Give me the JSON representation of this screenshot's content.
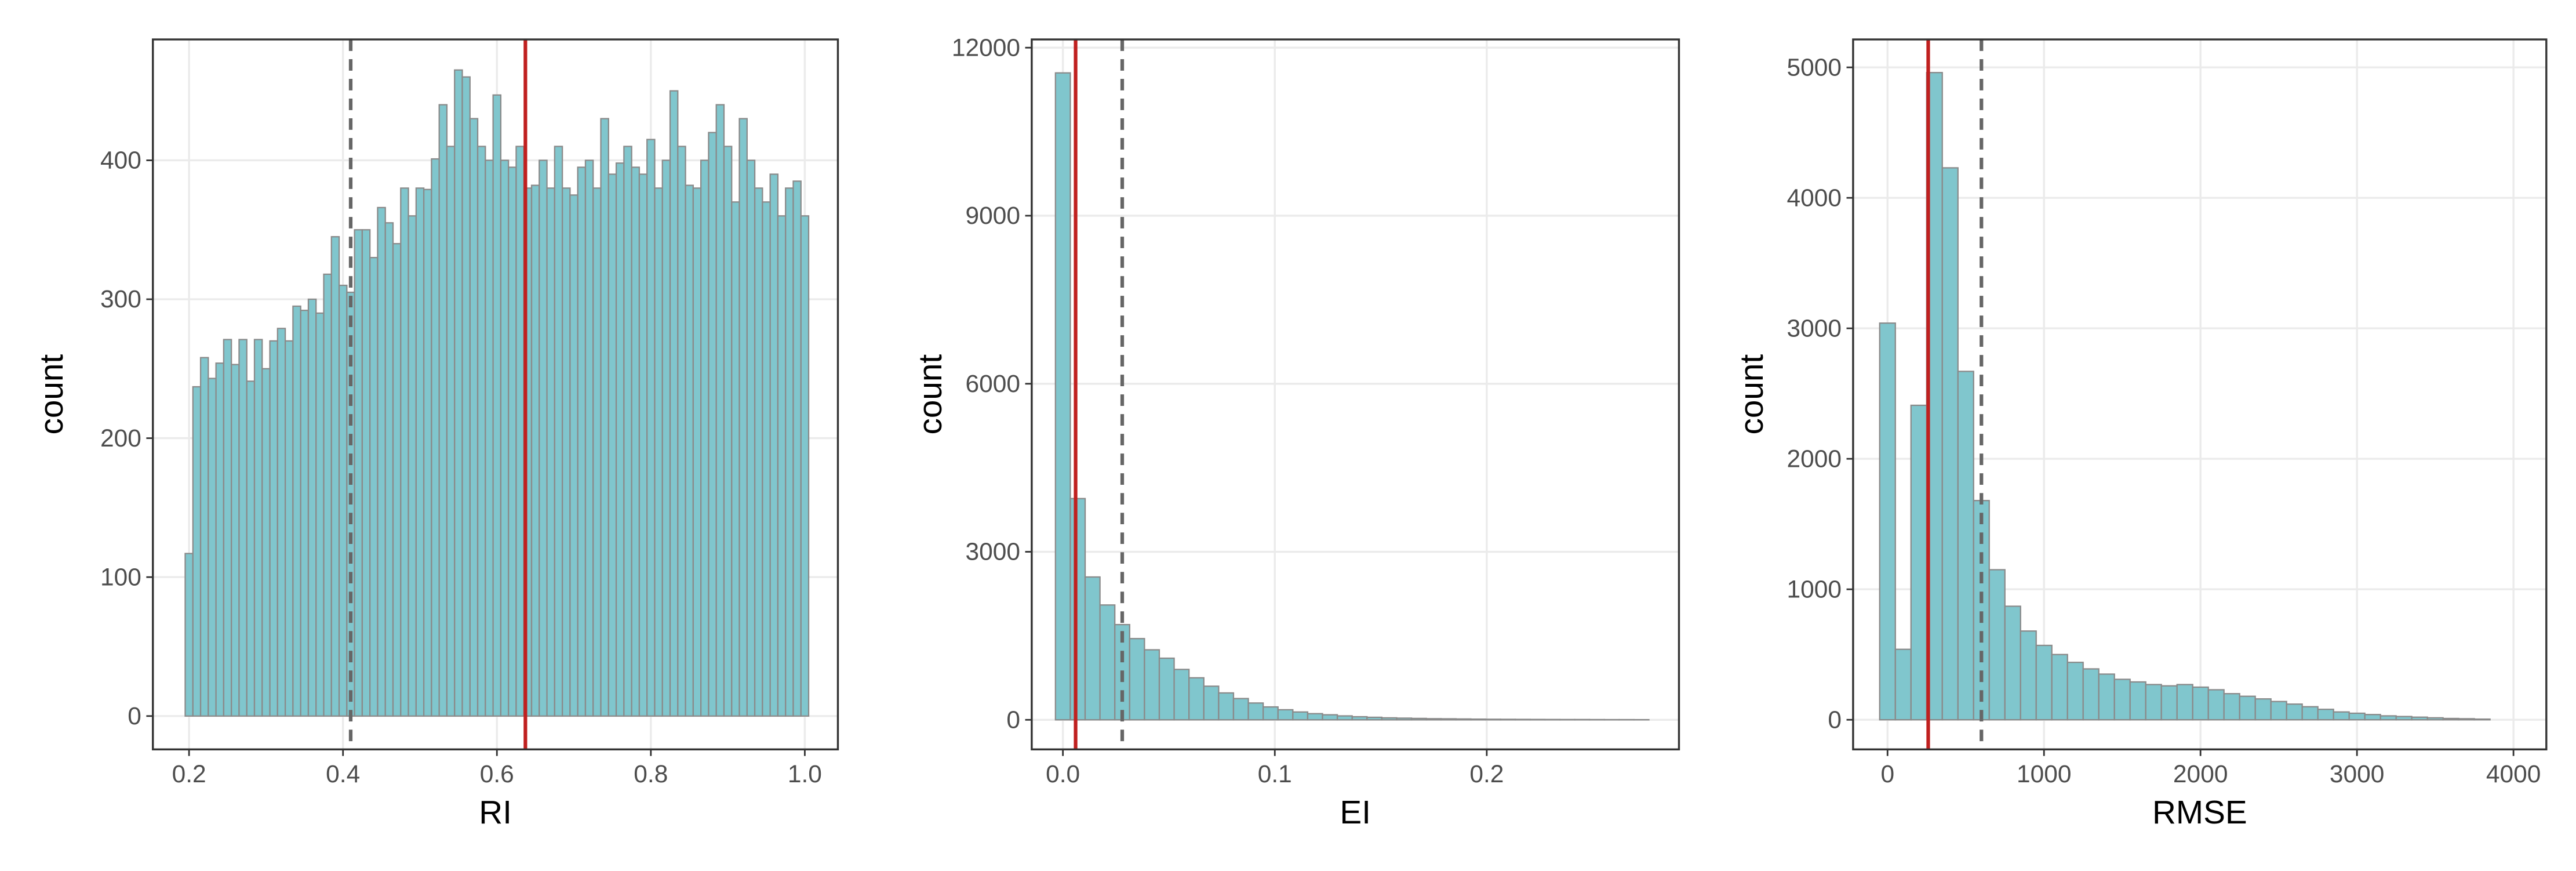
{
  "chart_data": [
    {
      "type": "histogram",
      "xlabel": "RI",
      "ylabel": "count",
      "color": "#80c6cd",
      "edgecolor": "#8a8a8a",
      "grid": true,
      "bins": [
        0.195,
        0.205,
        0.215,
        0.225,
        0.235,
        0.245,
        0.255,
        0.265,
        0.275,
        0.285,
        0.295,
        0.305,
        0.315,
        0.325,
        0.335,
        0.345,
        0.355,
        0.365,
        0.375,
        0.385,
        0.395,
        0.405,
        0.415,
        0.425,
        0.435,
        0.445,
        0.455,
        0.465,
        0.475,
        0.485,
        0.495,
        0.505,
        0.515,
        0.525,
        0.535,
        0.545,
        0.555,
        0.565,
        0.575,
        0.585,
        0.595,
        0.605,
        0.615,
        0.625,
        0.635,
        0.645,
        0.655,
        0.665,
        0.675,
        0.685,
        0.695,
        0.705,
        0.715,
        0.725,
        0.735,
        0.745,
        0.755,
        0.765,
        0.775,
        0.785,
        0.795,
        0.805,
        0.815,
        0.825,
        0.835,
        0.845,
        0.855,
        0.865,
        0.875,
        0.885,
        0.895,
        0.905,
        0.915,
        0.925,
        0.935,
        0.945,
        0.955,
        0.965,
        0.975,
        0.985,
        0.995,
        1.005
      ],
      "values": [
        117,
        237,
        258,
        243,
        254,
        271,
        253,
        271,
        241,
        271,
        250,
        270,
        279,
        270,
        295,
        292,
        300,
        290,
        318,
        345,
        310,
        305,
        350,
        350,
        330,
        366,
        355,
        340,
        380,
        360,
        380,
        379,
        401,
        440,
        410,
        465,
        460,
        430,
        410,
        400,
        447,
        400,
        395,
        410,
        380,
        382,
        400,
        380,
        410,
        380,
        375,
        395,
        400,
        380,
        430,
        390,
        398,
        410,
        395,
        390,
        415,
        380,
        400,
        450,
        410,
        382,
        380,
        400,
        420,
        440,
        410,
        370,
        430,
        400,
        380,
        370,
        390,
        360,
        380,
        385,
        360
      ],
      "xlim": [
        0.153,
        1.043
      ],
      "ylim": [
        -24,
        487
      ],
      "xticks": [
        0.2,
        0.4,
        0.6,
        0.8,
        {
          "value": 1,
          "label": "1.0"
        }
      ],
      "yticks": [
        0,
        100,
        200,
        300,
        400
      ],
      "vlines": [
        {
          "value": 0.41,
          "color": "#666666",
          "style": "dashed"
        },
        {
          "value": 0.637,
          "color": "#c0201f",
          "style": "solid"
        }
      ]
    },
    {
      "type": "histogram",
      "xlabel": "EI",
      "ylabel": "count",
      "color": "#80c6cd",
      "edgecolor": "#8a8a8a",
      "grid": true,
      "bins": [
        -0.0035,
        0.0035,
        0.0105,
        0.0175,
        0.0245,
        0.0315,
        0.0385,
        0.0455,
        0.0525,
        0.0595,
        0.0665,
        0.0735,
        0.0805,
        0.0875,
        0.0945,
        0.1015,
        0.1085,
        0.1155,
        0.1225,
        0.1295,
        0.1365,
        0.1435,
        0.1505,
        0.1575,
        0.1645,
        0.1715,
        0.1785,
        0.1855,
        0.1925,
        0.1995,
        0.2065,
        0.2135,
        0.2205,
        0.2275,
        0.2345,
        0.2415,
        0.2485,
        0.2555,
        0.2625,
        0.2695,
        0.2765
      ],
      "values": [
        11550,
        3950,
        2550,
        2050,
        1700,
        1450,
        1250,
        1100,
        900,
        750,
        600,
        480,
        380,
        300,
        230,
        180,
        140,
        110,
        90,
        70,
        55,
        45,
        35,
        30,
        25,
        20,
        18,
        15,
        12,
        10,
        9,
        8,
        7,
        6,
        5,
        5,
        4,
        3,
        3,
        2
      ],
      "xlim": [
        -0.0147,
        0.2907
      ],
      "ylim": [
        -528,
        12147
      ],
      "xticks": [
        {
          "value": 0,
          "label": "0.0"
        },
        0.1,
        0.2
      ],
      "yticks": [
        0,
        3000,
        6000,
        9000,
        12000
      ],
      "vlines": [
        {
          "value": 0.028,
          "color": "#666666",
          "style": "dashed"
        },
        {
          "value": 0.006,
          "color": "#c0201f",
          "style": "solid"
        }
      ]
    },
    {
      "type": "histogram",
      "xlabel": "RMSE",
      "ylabel": "count",
      "color": "#80c6cd",
      "edgecolor": "#8a8a8a",
      "grid": true,
      "bins": [
        -50,
        50,
        150,
        250,
        350,
        450,
        550,
        650,
        750,
        850,
        950,
        1050,
        1150,
        1250,
        1350,
        1450,
        1550,
        1650,
        1750,
        1850,
        1950,
        2050,
        2150,
        2250,
        2350,
        2450,
        2550,
        2650,
        2750,
        2850,
        2950,
        3050,
        3150,
        3250,
        3350,
        3450,
        3550,
        3650,
        3750,
        3850
      ],
      "values": [
        3040,
        540,
        2410,
        4960,
        4230,
        2670,
        1680,
        1150,
        870,
        680,
        570,
        500,
        440,
        390,
        350,
        310,
        290,
        270,
        260,
        270,
        250,
        230,
        200,
        180,
        160,
        140,
        120,
        100,
        80,
        60,
        50,
        40,
        30,
        25,
        20,
        15,
        10,
        8,
        5
      ],
      "xlim": [
        -220,
        4210
      ],
      "ylim": [
        -227,
        5214
      ],
      "xticks": [
        0,
        1000,
        2000,
        3000,
        4000
      ],
      "yticks": [
        0,
        1000,
        2000,
        3000,
        4000,
        5000
      ],
      "vlines": [
        {
          "value": 600,
          "color": "#666666",
          "style": "dashed"
        },
        {
          "value": 260,
          "color": "#c0201f",
          "style": "solid"
        }
      ]
    }
  ]
}
